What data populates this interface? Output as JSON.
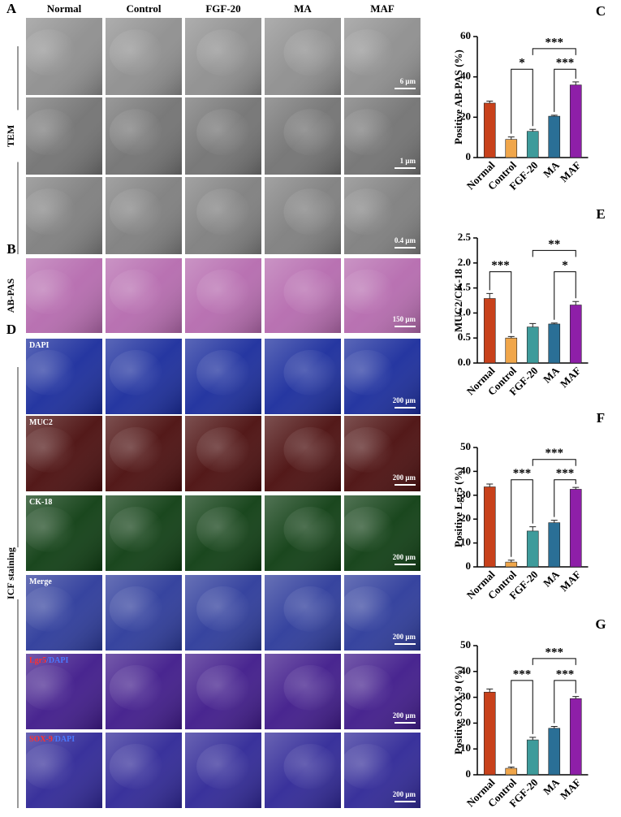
{
  "figure": {
    "columns": [
      "Normal",
      "Control",
      "FGF-20",
      "MA",
      "MAF"
    ],
    "groups": [
      {
        "panel_label": "A",
        "label": "TEM",
        "rows": [
          {
            "tone": "#8e8e8e",
            "scale_bar": "6 μm"
          },
          {
            "tone": "#727272",
            "scale_bar": "1 μm"
          },
          {
            "tone": "#7e7e7e",
            "scale_bar": "0.4 μm"
          }
        ]
      },
      {
        "panel_label": "B",
        "label": "AB-PAS",
        "rows": [
          {
            "tone": "#b56aae",
            "scale_bar": "150 μm"
          }
        ]
      },
      {
        "panel_label": "D",
        "label": "ICF staining",
        "rows": [
          {
            "tone": "#1a2c9c",
            "label_parts": [
              {
                "text": "DAPI",
                "color": "#ffffff"
              }
            ],
            "scale_bar": "200 μm"
          },
          {
            "tone": "#4a0d0d",
            "label_parts": [
              {
                "text": "MUC2",
                "color": "#ffffff"
              }
            ],
            "scale_bar": "200 μm"
          },
          {
            "tone": "#0e3d12",
            "label_parts": [
              {
                "text": "CK-18",
                "color": "#ffffff"
              }
            ],
            "scale_bar": "200 μm"
          },
          {
            "tone": "#2c3a9a",
            "label_parts": [
              {
                "text": "Merge",
                "color": "#ffffff"
              }
            ],
            "scale_bar": "200 μm"
          },
          {
            "tone": "#3f1a8a",
            "label_parts": [
              {
                "text": "Lgr5",
                "color": "#ff3030"
              },
              {
                "text": "/DAPI",
                "color": "#4a78ff"
              }
            ],
            "scale_bar": "200 μm"
          },
          {
            "tone": "#2f2796",
            "label_parts": [
              {
                "text": "SOX-9",
                "color": "#ff3030"
              },
              {
                "text": "/DAPI",
                "color": "#4a78ff"
              }
            ],
            "scale_bar": "200 μm"
          }
        ]
      }
    ]
  },
  "chart_data": [
    {
      "type": "bar",
      "panel_label": "C",
      "y_label": "Positive AB-PAS (%)",
      "categories": [
        "Normal",
        "Control",
        "FGF-20",
        "MA",
        "MAF"
      ],
      "values": [
        27,
        9,
        13,
        20.5,
        36
      ],
      "errors": [
        1,
        1.2,
        1,
        0.5,
        1.5
      ],
      "colors": [
        "#c8411b",
        "#f0a64a",
        "#3e9b9b",
        "#2a6f96",
        "#8e1fa8"
      ],
      "ylim": [
        0,
        60
      ],
      "yticks": [
        0,
        20,
        40,
        60
      ],
      "significance": [
        {
          "between": [
            "Control",
            "FGF-20"
          ],
          "label": "*"
        },
        {
          "between": [
            "MA",
            "MAF"
          ],
          "label": "***"
        },
        {
          "between": [
            "FGF-20",
            "MAF"
          ],
          "label": "***"
        }
      ]
    },
    {
      "type": "bar",
      "panel_label": "E",
      "y_label": "MUC2/CK-18",
      "categories": [
        "Normal",
        "Control",
        "FGF-20",
        "MA",
        "MAF"
      ],
      "values": [
        1.29,
        0.5,
        0.72,
        0.78,
        1.16
      ],
      "errors": [
        0.1,
        0.03,
        0.07,
        0.02,
        0.07
      ],
      "colors": [
        "#c8411b",
        "#f0a64a",
        "#3e9b9b",
        "#2a6f96",
        "#8e1fa8"
      ],
      "ylim": [
        0,
        2.5
      ],
      "yticks": [
        {
          "value": 0,
          "label": "0.0"
        },
        0.5,
        {
          "value": 1,
          "label": "1.0"
        },
        1.5,
        {
          "value": 2,
          "label": "2.0"
        },
        2.5
      ],
      "significance": [
        {
          "between": [
            "Normal",
            "Control"
          ],
          "label": "***"
        },
        {
          "between": [
            "MA",
            "MAF"
          ],
          "label": "*"
        },
        {
          "between": [
            "FGF-20",
            "MAF"
          ],
          "label": "**"
        }
      ]
    },
    {
      "type": "bar",
      "panel_label": "F",
      "y_label": "Positive Lgr5 (%)",
      "categories": [
        "Normal",
        "Control",
        "FGF-20",
        "MA",
        "MAF"
      ],
      "values": [
        33.5,
        2,
        15,
        18.5,
        32.5
      ],
      "errors": [
        1.2,
        0.8,
        1.8,
        1,
        0.8
      ],
      "colors": [
        "#c8411b",
        "#f0a64a",
        "#3e9b9b",
        "#2a6f96",
        "#8e1fa8"
      ],
      "ylim": [
        0,
        50
      ],
      "yticks": [
        0,
        10,
        20,
        30,
        40,
        50
      ],
      "significance": [
        {
          "between": [
            "Control",
            "FGF-20"
          ],
          "label": "***"
        },
        {
          "between": [
            "MA",
            "MAF"
          ],
          "label": "***"
        },
        {
          "between": [
            "FGF-20",
            "MAF"
          ],
          "label": "***"
        }
      ]
    },
    {
      "type": "bar",
      "panel_label": "G",
      "y_label": "Positive SOX-9 (%)",
      "categories": [
        "Normal",
        "Control",
        "FGF-20",
        "MA",
        "MAF"
      ],
      "values": [
        32,
        2.5,
        13.5,
        18,
        29.5
      ],
      "errors": [
        1.2,
        0.5,
        1,
        0.7,
        0.8
      ],
      "colors": [
        "#c8411b",
        "#f0a64a",
        "#3e9b9b",
        "#2a6f96",
        "#8e1fa8"
      ],
      "ylim": [
        0,
        50
      ],
      "yticks": [
        0,
        10,
        20,
        30,
        40,
        50
      ],
      "significance": [
        {
          "between": [
            "Control",
            "FGF-20"
          ],
          "label": "***"
        },
        {
          "between": [
            "MA",
            "MAF"
          ],
          "label": "***"
        },
        {
          "between": [
            "FGF-20",
            "MAF"
          ],
          "label": "***"
        }
      ]
    }
  ]
}
